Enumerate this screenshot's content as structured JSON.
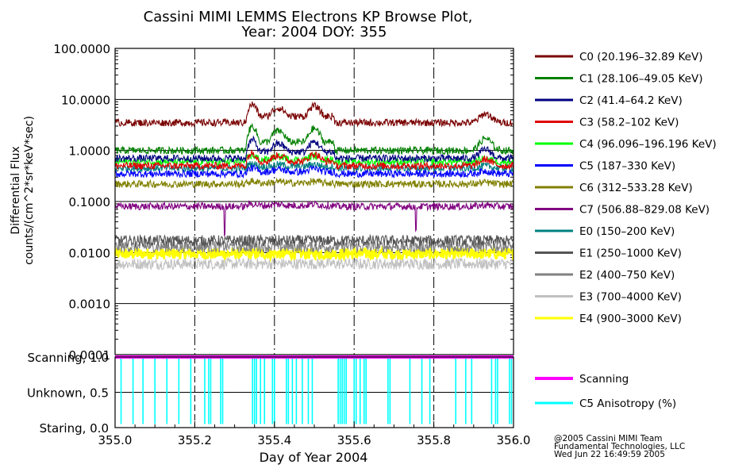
{
  "chart_data": {
    "type": "line",
    "title_line1": "Cassini MIMI LEMMS Electrons KP Browse Plot,",
    "title_line2": "Year: 2004 DOY: 355",
    "xlabel": "Day of Year 2004",
    "ylabel_line1": "Differential Flux",
    "ylabel_line2": "counts/(cm^2*sr*keV*sec)",
    "xlim": [
      355.0,
      356.0
    ],
    "x_tick_labels": [
      "355.0",
      "355.2",
      "355.4",
      "355.6",
      "355.8",
      "356.0"
    ],
    "upper_panel": {
      "y_scale": "log",
      "ylim": [
        0.0001,
        100
      ],
      "y_tick_labels": [
        "100.0000",
        "10.0000",
        "1.0000",
        "0.1000",
        "0.0100",
        "0.0010",
        "0.0001"
      ],
      "grid": true,
      "series": [
        {
          "name": "C0 (20.196–32.89 KeV)",
          "color": "#7a0000",
          "level": 3.5,
          "enhanced": 8.0
        },
        {
          "name": "C1 (28.106–49.05 KeV)",
          "color": "#008000",
          "level": 1.0,
          "enhanced": 3.0
        },
        {
          "name": "C2 (41.4–64.2 KeV)",
          "color": "#000080",
          "level": 0.7,
          "enhanced": 1.6
        },
        {
          "name": "C3 (58.2–102 KeV)",
          "color": "#e00000",
          "level": 0.5,
          "enhanced": 0.9
        },
        {
          "name": "C4 (96.096–196.196 KeV)",
          "color": "#00ff00",
          "level": 0.6,
          "enhanced": 0.8
        },
        {
          "name": "C5 (187–330 KeV)",
          "color": "#0000ff",
          "level": 0.35,
          "enhanced": 0.45
        },
        {
          "name": "C6 (312–533.28 KeV)",
          "color": "#808000",
          "level": 0.22,
          "enhanced": 0.25
        },
        {
          "name": "C7 (506.88–829.08 KeV)",
          "color": "#800080",
          "level": 0.08,
          "enhanced": 0.09
        },
        {
          "name": "E0 (150–200 KeV)",
          "color": "#008080",
          "level": 0.45,
          "enhanced": 0.55
        },
        {
          "name": "E1 (250–1000 KeV)",
          "color": "#555555",
          "level": 0.017,
          "enhanced": 0.017
        },
        {
          "name": "E2 (400–750 KeV)",
          "color": "#808080",
          "level": 0.013,
          "enhanced": 0.013
        },
        {
          "name": "E3 (700–4000 KeV)",
          "color": "#c0c0c0",
          "level": 0.006,
          "enhanced": 0.006
        },
        {
          "name": "E4 (900–3000 KeV)",
          "color": "#ffff00",
          "level": 0.0095,
          "enhanced": 0.0095
        }
      ]
    },
    "lower_panel": {
      "ylim": [
        0.0,
        1.0
      ],
      "y_tick_labels": [
        "Scanning, 1.0",
        "Unknown, 0.5",
        "Staring, 0.0"
      ],
      "series": [
        {
          "name": "Scanning",
          "color": "#ff00ff",
          "value": 1.0
        },
        {
          "name": "C5 Anisotropy (%)",
          "color": "#00ffff",
          "drop_times": [
            355.015,
            355.045,
            355.07,
            355.1,
            355.13,
            355.16,
            355.19,
            355.225,
            355.235,
            355.24,
            355.265,
            355.27,
            355.345,
            355.35,
            355.355,
            355.365,
            355.375,
            355.395,
            355.4,
            355.43,
            355.435,
            355.445,
            355.455,
            355.47,
            355.485,
            355.495,
            355.56,
            355.565,
            355.57,
            355.575,
            355.58,
            355.6,
            355.605,
            355.615,
            355.625,
            355.63,
            355.685,
            355.69,
            355.74,
            355.77,
            355.79,
            355.855,
            355.88,
            355.895,
            355.945,
            355.955,
            355.96,
            355.99,
            355.995
          ]
        }
      ]
    },
    "footer": {
      "line1": "@2005 Cassini MIMI Team",
      "line2": "Fundamental Technologies, LLC",
      "line3": "Wed Jun 22 16:49:59 2005"
    }
  }
}
